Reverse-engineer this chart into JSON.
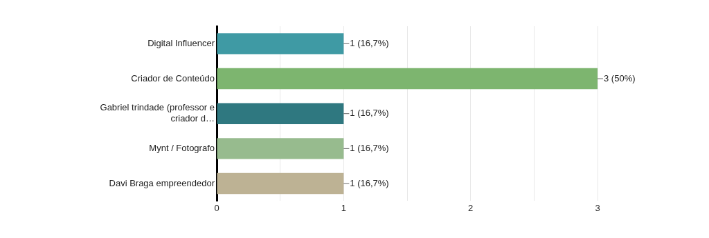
{
  "chart_data": {
    "type": "bar",
    "orientation": "horizontal",
    "categories": [
      "Digital Influencer",
      "Criador de Conteúdo",
      "Gabriel trindade (professor e criador d…",
      "Mynt / Fotografo",
      "Davi Braga empreendedor"
    ],
    "values": [
      1,
      3,
      1,
      1,
      1
    ],
    "colors": [
      "#3f9aa4",
      "#7db56f",
      "#2f7880",
      "#97bb8e",
      "#bdb294"
    ],
    "value_labels": [
      "1 (16,7%)",
      "3 (50%)",
      "1 (16,7%)",
      "1 (16,7%)",
      "1 (16,7%)"
    ],
    "xlim": [
      0,
      3
    ],
    "xticks": [
      0,
      {
        "value": 0.5,
        "label": null
      },
      1,
      {
        "value": 1.5,
        "label": null
      },
      2,
      {
        "value": 2.5,
        "label": null
      },
      3
    ],
    "grid": "x",
    "legend": false
  }
}
